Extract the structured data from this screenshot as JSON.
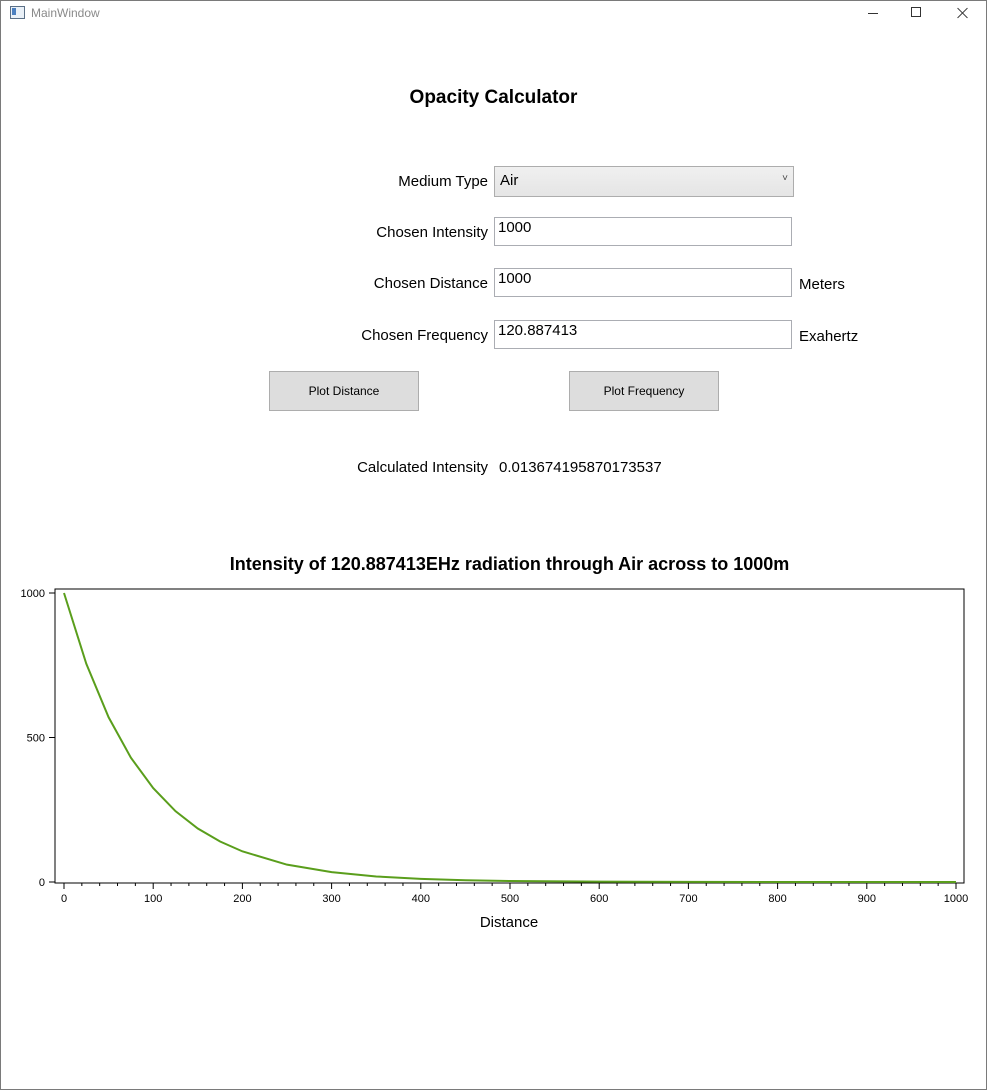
{
  "window": {
    "title": "MainWindow"
  },
  "form": {
    "heading": "Opacity Calculator",
    "medium_type_label": "Medium Type",
    "medium_type_value": "Air",
    "intensity_label": "Chosen Intensity",
    "intensity_value": "1000",
    "distance_label": "Chosen Distance",
    "distance_value": "1000",
    "distance_unit": "Meters",
    "frequency_label": "Chosen Frequency",
    "frequency_value": "120.887413",
    "frequency_unit": "Exahertz",
    "plot_distance_button": "Plot Distance",
    "plot_frequency_button": "Plot Frequency",
    "calculated_label": "Calculated Intensity",
    "calculated_value": "0.013674195870173537"
  },
  "chart_data": {
    "type": "line",
    "title": "Intensity of 120.887413EHz radiation through Air across to 1000m",
    "xlabel": "Distance",
    "ylabel": "",
    "xlim": [
      0,
      1000
    ],
    "ylim": [
      0,
      1000
    ],
    "x_ticks": [
      0,
      100,
      200,
      300,
      400,
      500,
      600,
      700,
      800,
      900,
      1000
    ],
    "y_ticks": [
      0,
      500,
      1000
    ],
    "grid": false,
    "legend": "none",
    "series": [
      {
        "color": "#5a9e1c",
        "x": [
          0,
          25,
          50,
          75,
          100,
          125,
          150,
          175,
          200,
          250,
          300,
          350,
          400,
          450,
          500,
          600,
          700,
          800,
          900,
          1000
        ],
        "y": [
          1000,
          755,
          570,
          430,
          325,
          245,
          185,
          140,
          106,
          60,
          34,
          19,
          11,
          6,
          3.5,
          1.1,
          0.4,
          0.1,
          0.04,
          0.014
        ]
      }
    ]
  }
}
